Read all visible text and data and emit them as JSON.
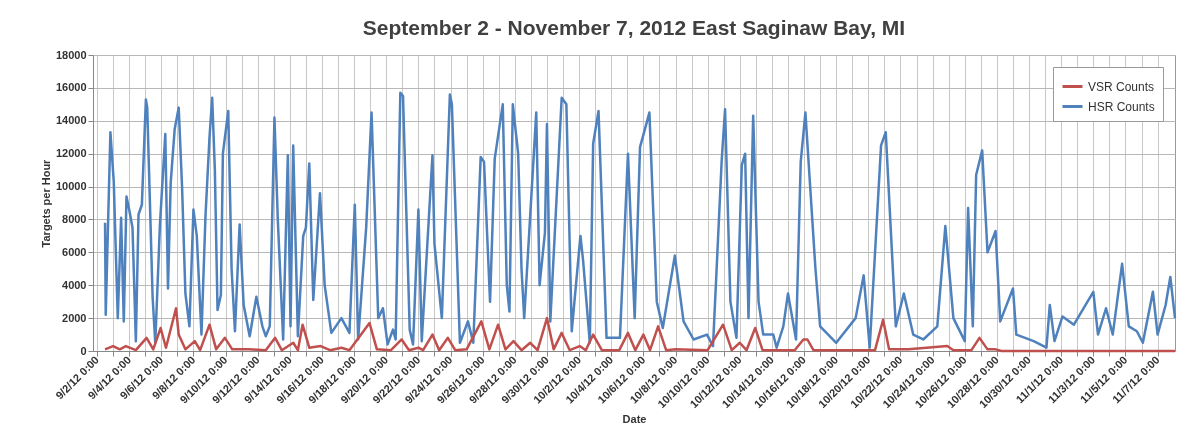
{
  "chart_data": {
    "type": "line",
    "title": "September 2 - November 7, 2012 East Saginaw Bay, MI",
    "xlabel": "Date",
    "ylabel": "Targets per Hour",
    "xlim": [
      "2012-09-01T18:00",
      "2012-11-08T02:00"
    ],
    "ylim": [
      0,
      18000
    ],
    "yticks": [
      0,
      2000,
      4000,
      6000,
      8000,
      10000,
      12000,
      14000,
      16000,
      18000
    ],
    "xticks": [
      {
        "value": "2012-09-02",
        "label": "9/2/12 0:00"
      },
      {
        "value": "2012-09-03",
        "label": null
      },
      {
        "value": "2012-09-04",
        "label": "9/4/12 0:00"
      },
      {
        "value": "2012-09-05",
        "label": null
      },
      {
        "value": "2012-09-06",
        "label": "9/6/12 0:00"
      },
      {
        "value": "2012-09-07",
        "label": null
      },
      {
        "value": "2012-09-08",
        "label": "9/8/12 0:00"
      },
      {
        "value": "2012-09-09",
        "label": null
      },
      {
        "value": "2012-09-10",
        "label": "9/10/12 0:00"
      },
      {
        "value": "2012-09-11",
        "label": null
      },
      {
        "value": "2012-09-12",
        "label": "9/12/12 0:00"
      },
      {
        "value": "2012-09-13",
        "label": null
      },
      {
        "value": "2012-09-14",
        "label": "9/14/12 0:00"
      },
      {
        "value": "2012-09-15",
        "label": null
      },
      {
        "value": "2012-09-16",
        "label": "9/16/12 0:00"
      },
      {
        "value": "2012-09-17",
        "label": null
      },
      {
        "value": "2012-09-18",
        "label": "9/18/12 0:00"
      },
      {
        "value": "2012-09-19",
        "label": null
      },
      {
        "value": "2012-09-20",
        "label": "9/20/12 0:00"
      },
      {
        "value": "2012-09-21",
        "label": null
      },
      {
        "value": "2012-09-22",
        "label": "9/22/12 0:00"
      },
      {
        "value": "2012-09-23",
        "label": null
      },
      {
        "value": "2012-09-24",
        "label": "9/24/12 0:00"
      },
      {
        "value": "2012-09-25",
        "label": null
      },
      {
        "value": "2012-09-26",
        "label": "9/26/12 0:00"
      },
      {
        "value": "2012-09-27",
        "label": null
      },
      {
        "value": "2012-09-28",
        "label": "9/28/12 0:00"
      },
      {
        "value": "2012-09-29",
        "label": null
      },
      {
        "value": "2012-09-30",
        "label": "9/30/12 0:00"
      },
      {
        "value": "2012-10-01",
        "label": null
      },
      {
        "value": "2012-10-02",
        "label": "10/2/12 0:00"
      },
      {
        "value": "2012-10-03",
        "label": null
      },
      {
        "value": "2012-10-04",
        "label": "10/4/12 0:00"
      },
      {
        "value": "2012-10-05",
        "label": null
      },
      {
        "value": "2012-10-06",
        "label": "10/6/12 0:00"
      },
      {
        "value": "2012-10-07",
        "label": null
      },
      {
        "value": "2012-10-08",
        "label": "10/8/12 0:00"
      },
      {
        "value": "2012-10-09",
        "label": null
      },
      {
        "value": "2012-10-10",
        "label": "10/10/12 0:00"
      },
      {
        "value": "2012-10-11",
        "label": null
      },
      {
        "value": "2012-10-12",
        "label": "10/12/12 0:00"
      },
      {
        "value": "2012-10-13",
        "label": null
      },
      {
        "value": "2012-10-14",
        "label": "10/14/12 0:00"
      },
      {
        "value": "2012-10-15",
        "label": null
      },
      {
        "value": "2012-10-16",
        "label": "10/16/12 0:00"
      },
      {
        "value": "2012-10-17",
        "label": null
      },
      {
        "value": "2012-10-18",
        "label": "10/18/12 0:00"
      },
      {
        "value": "2012-10-19",
        "label": null
      },
      {
        "value": "2012-10-20",
        "label": "10/20/12 0:00"
      },
      {
        "value": "2012-10-21",
        "label": null
      },
      {
        "value": "2012-10-22",
        "label": "10/22/12 0:00"
      },
      {
        "value": "2012-10-23",
        "label": null
      },
      {
        "value": "2012-10-24",
        "label": "10/24/12 0:00"
      },
      {
        "value": "2012-10-25",
        "label": null
      },
      {
        "value": "2012-10-26",
        "label": "10/26/12 0:00"
      },
      {
        "value": "2012-10-27",
        "label": null
      },
      {
        "value": "2012-10-28",
        "label": "10/28/12 0:00"
      },
      {
        "value": "2012-10-29",
        "label": null
      },
      {
        "value": "2012-10-30",
        "label": "10/30/12 0:00"
      },
      {
        "value": "2012-10-31",
        "label": null
      },
      {
        "value": "2012-11-01",
        "label": "11/1/12 0:00"
      },
      {
        "value": "2012-11-02",
        "label": null
      },
      {
        "value": "2012-11-03",
        "label": "11/3/12 0:00"
      },
      {
        "value": "2012-11-04",
        "label": null
      },
      {
        "value": "2012-11-05",
        "label": "11/5/12 0:00"
      },
      {
        "value": "2012-11-06",
        "label": null
      },
      {
        "value": "2012-11-07",
        "label": "11/7/12 0:00"
      }
    ],
    "grid": true,
    "legend": "top right",
    "series": [
      {
        "name": "VSR Counts",
        "color": "#c0504d",
        "x": [
          "2012-09-02T12:00",
          "2012-09-03T00:00",
          "2012-09-03T10:00",
          "2012-09-03T19:00",
          "2012-09-04T10:00",
          "2012-09-05T02:00",
          "2012-09-05T12:00",
          "2012-09-05T23:00",
          "2012-09-06T07:00",
          "2012-09-06T22:00",
          "2012-09-07T02:00",
          "2012-09-07T12:00",
          "2012-09-08T02:00",
          "2012-09-08T10:00",
          "2012-09-09T00:00",
          "2012-09-09T10:00",
          "2012-09-09T23:00",
          "2012-09-10T10:00",
          "2012-09-11T12:00",
          "2012-09-12T12:00",
          "2012-09-13T02:00",
          "2012-09-13T12:00",
          "2012-09-14T05:00",
          "2012-09-14T12:00",
          "2012-09-14T19:00",
          "2012-09-15T05:00",
          "2012-09-15T22:00",
          "2012-09-16T12:00",
          "2012-09-17T05:00",
          "2012-09-17T17:00",
          "2012-09-18T23:00",
          "2012-09-19T10:00",
          "2012-09-20T07:00",
          "2012-09-20T23:00",
          "2012-09-21T10:00",
          "2012-09-22T00:00",
          "2012-09-22T07:00",
          "2012-09-22T21:00",
          "2012-09-23T07:00",
          "2012-09-23T20:00",
          "2012-09-24T07:00",
          "2012-09-25T00:00",
          "2012-09-25T22:00",
          "2012-09-26T10:00",
          "2012-09-26T23:00",
          "2012-09-27T10:00",
          "2012-09-27T22:00",
          "2012-09-28T10:00",
          "2012-09-28T23:00",
          "2012-09-29T10:00",
          "2012-09-30T00:00",
          "2012-09-30T10:00",
          "2012-09-30T22:00",
          "2012-10-01T10:00",
          "2012-10-02T01:00",
          "2012-10-02T10:00",
          "2012-10-02T21:00",
          "2012-10-03T10:00",
          "2012-10-04T12:00",
          "2012-10-05T01:00",
          "2012-10-05T12:00",
          "2012-10-06T00:00",
          "2012-10-06T10:00",
          "2012-10-06T22:00",
          "2012-10-07T10:00",
          "2012-10-08T00:00",
          "2012-10-10T00:00",
          "2012-10-10T23:00",
          "2012-10-11T12:00",
          "2012-10-12T00:00",
          "2012-10-12T10:00",
          "2012-10-12T23:00",
          "2012-10-13T10:00",
          "2012-10-15T10:00",
          "2012-10-15T23:00",
          "2012-10-16T05:00",
          "2012-10-16T14:00",
          "2012-10-20T10:00",
          "2012-10-20T22:00",
          "2012-10-21T07:00",
          "2012-10-22T12:00",
          "2012-10-24T22:00",
          "2012-10-25T07:00",
          "2012-10-26T10:00",
          "2012-10-26T22:00",
          "2012-10-27T10:00",
          "2012-10-27T22:00",
          "2012-10-28T07:00",
          "2012-11-08T02:00"
        ],
        "values": [
          100,
          300,
          100,
          300,
          50,
          800,
          100,
          1400,
          200,
          2600,
          1000,
          100,
          600,
          50,
          1600,
          100,
          800,
          100,
          100,
          50,
          800,
          50,
          500,
          50,
          1600,
          200,
          300,
          50,
          200,
          50,
          1700,
          100,
          50,
          700,
          50,
          200,
          50,
          1000,
          50,
          800,
          50,
          100,
          1800,
          100,
          1600,
          100,
          600,
          50,
          500,
          50,
          2000,
          100,
          1100,
          50,
          300,
          50,
          1000,
          50,
          50,
          1100,
          50,
          1000,
          50,
          1500,
          50,
          100,
          50,
          1600,
          50,
          500,
          50,
          1400,
          50,
          50,
          700,
          700,
          50,
          50,
          1900,
          100,
          100,
          300,
          50,
          50,
          800,
          100,
          100,
          0,
          0
        ]
      },
      {
        "name": "HSR Counts",
        "color": "#4f81bd",
        "x": [
          "2012-09-02T12:00",
          "2012-09-02T13:00",
          "2012-09-02T20:00",
          "2012-09-03T01:00",
          "2012-09-03T07:00",
          "2012-09-03T12:00",
          "2012-09-03T16:00",
          "2012-09-03T20:00",
          "2012-09-04T00:00",
          "2012-09-04T05:00",
          "2012-09-04T10:00",
          "2012-09-04T14:00",
          "2012-09-04T19:00",
          "2012-09-05T01:00",
          "2012-09-05T03:00",
          "2012-09-05T11:00",
          "2012-09-05T15:00",
          "2012-09-05T22:00",
          "2012-09-06T06:00",
          "2012-09-06T10:00",
          "2012-09-06T14:00",
          "2012-09-06T20:00",
          "2012-09-07T02:00",
          "2012-09-07T07:00",
          "2012-09-07T12:00",
          "2012-09-07T18:00",
          "2012-09-07T21:00",
          "2012-09-08T00:00",
          "2012-09-08T05:00",
          "2012-09-08T12:00",
          "2012-09-08T18:00",
          "2012-09-09T00:00",
          "2012-09-09T04:00",
          "2012-09-09T08:00",
          "2012-09-09T12:00",
          "2012-09-09T17:00",
          "2012-09-09T20:00",
          "2012-09-10T04:00",
          "2012-09-10T09:00",
          "2012-09-10T14:00",
          "2012-09-10T21:00",
          "2012-09-11T03:00",
          "2012-09-11T12:00",
          "2012-09-11T22:00",
          "2012-09-12T07:00",
          "2012-09-12T12:00",
          "2012-09-12T18:00",
          "2012-09-13T01:00",
          "2012-09-13T06:00",
          "2012-09-13T14:00",
          "2012-09-13T21:00",
          "2012-09-14T01:00",
          "2012-09-14T05:00",
          "2012-09-14T12:00",
          "2012-09-14T20:00",
          "2012-09-15T00:00",
          "2012-09-15T05:00",
          "2012-09-15T11:00",
          "2012-09-15T21:00",
          "2012-09-16T04:00",
          "2012-09-16T14:00",
          "2012-09-17T05:00",
          "2012-09-17T17:00",
          "2012-09-18T01:00",
          "2012-09-18T06:00",
          "2012-09-18T18:00",
          "2012-09-19T02:00",
          "2012-09-19T12:00",
          "2012-09-19T19:00",
          "2012-09-20T02:00",
          "2012-09-20T10:00",
          "2012-09-20T14:00",
          "2012-09-20T21:00",
          "2012-09-21T01:00",
          "2012-09-21T11:00",
          "2012-09-21T16:00",
          "2012-09-22T00:00",
          "2012-09-22T05:00",
          "2012-09-22T21:00",
          "2012-09-23T00:00",
          "2012-09-23T11:00",
          "2012-09-23T23:00",
          "2012-09-24T02:00",
          "2012-09-24T14:00",
          "2012-09-25T02:00",
          "2012-09-25T10:00",
          "2012-09-25T21:00",
          "2012-09-26T02:00",
          "2012-09-26T11:00",
          "2012-09-26T18:00",
          "2012-09-27T06:00",
          "2012-09-27T12:00",
          "2012-09-27T16:00",
          "2012-09-27T21:00",
          "2012-09-28T05:00",
          "2012-09-28T10:00",
          "2012-09-28T14:00",
          "2012-09-29T08:00",
          "2012-09-29T13:00",
          "2012-09-29T21:00",
          "2012-09-30T00:00",
          "2012-09-30T05:00",
          "2012-09-30T22:00",
          "2012-10-01T05:00",
          "2012-10-01T13:00",
          "2012-10-02T02:00",
          "2012-10-02T06:00",
          "2012-10-02T16:00",
          "2012-10-02T21:00",
          "2012-10-03T05:00",
          "2012-10-03T17:00",
          "2012-10-04T13:00",
          "2012-10-05T01:00",
          "2012-10-05T11:00",
          "2012-10-05T19:00",
          "2012-10-06T09:00",
          "2012-10-06T20:00",
          "2012-10-07T05:00",
          "2012-10-07T23:00",
          "2012-10-08T12:00",
          "2012-10-09T03:00",
          "2012-10-09T23:00",
          "2012-10-10T08:00",
          "2012-10-10T21:00",
          "2012-10-11T02:00",
          "2012-10-11T10:00",
          "2012-10-11T19:00",
          "2012-10-12T03:00",
          "2012-10-12T08:00",
          "2012-10-12T13:00",
          "2012-10-12T20:00",
          "2012-10-13T04:00",
          "2012-10-13T11:00",
          "2012-10-14T02:00",
          "2012-10-14T07:00",
          "2012-10-14T17:00",
          "2012-10-15T00:00",
          "2012-10-15T12:00",
          "2012-10-15T19:00",
          "2012-10-16T02:00",
          "2012-10-16T17:00",
          "2012-10-17T00:00",
          "2012-10-18T00:00",
          "2012-10-19T05:00",
          "2012-10-19T17:00",
          "2012-10-20T02:00",
          "2012-10-20T19:00",
          "2012-10-21T02:00",
          "2012-10-21T17:00",
          "2012-10-22T05:00",
          "2012-10-22T19:00",
          "2012-10-23T10:00",
          "2012-10-24T07:00",
          "2012-10-24T19:00",
          "2012-10-25T07:00",
          "2012-10-26T00:00",
          "2012-10-26T05:00",
          "2012-10-26T12:00",
          "2012-10-26T17:00",
          "2012-10-27T02:00",
          "2012-10-27T10:00",
          "2012-10-27T22:00",
          "2012-10-28T05:00",
          "2012-10-29T00:00",
          "2012-10-29T05:00",
          "2012-10-30T07:00",
          "2012-10-31T02:00",
          "2012-10-31T07:00",
          "2012-10-31T14:00",
          "2012-11-01T02:00",
          "2012-11-01T19:00",
          "2012-11-03T00:00",
          "2012-11-03T07:00",
          "2012-11-03T19:00",
          "2012-11-04T05:00",
          "2012-11-04T19:00",
          "2012-11-05T05:00",
          "2012-11-05T17:00",
          "2012-11-06T02:00",
          "2012-11-06T17:00",
          "2012-11-07T00:00",
          "2012-11-07T12:00",
          "2012-11-07T19:00",
          "2012-11-08T02:00"
        ],
        "values": [
          7800,
          2200,
          13300,
          10300,
          2000,
          8100,
          1800,
          9400,
          8600,
          7500,
          600,
          8300,
          8900,
          15300,
          14800,
          3300,
          500,
          7700,
          13200,
          3800,
          10200,
          13500,
          14800,
          10000,
          3500,
          1500,
          5000,
          8600,
          7000,
          1000,
          8200,
          13000,
          15400,
          11000,
          2500,
          3400,
          12000,
          14600,
          5000,
          1200,
          7700,
          2800,
          900,
          3300,
          1500,
          900,
          1500,
          14200,
          8000,
          700,
          11900,
          1500,
          12500,
          900,
          7000,
          7500,
          11400,
          3100,
          9600,
          4000,
          1100,
          2000,
          1100,
          8900,
          700,
          7500,
          14500,
          2000,
          2600,
          400,
          1300,
          700,
          15700,
          15500,
          1300,
          400,
          8600,
          600,
          11900,
          6500,
          2000,
          15600,
          15000,
          500,
          1800,
          500,
          11800,
          11500,
          3000,
          11700,
          15000,
          4000,
          2400,
          15000,
          12000,
          5000,
          2000,
          14500,
          4000,
          7200,
          13800,
          1800,
          15400,
          15000,
          1200,
          7000,
          5500,
          500,
          12600,
          14600,
          800,
          800,
          12000,
          2000,
          12400,
          14500,
          3000,
          1400,
          5800,
          1800,
          700,
          1000,
          300,
          11600,
          14700,
          3000,
          800,
          11300,
          12000,
          2000,
          14300,
          3000,
          1000,
          1000,
          200,
          1500,
          3500,
          700,
          11500,
          14500,
          5000,
          1500,
          500,
          2000,
          4600,
          200,
          12500,
          13300,
          1500,
          3500,
          1000,
          700,
          1500,
          7600,
          2000,
          600,
          8700,
          1500,
          10700,
          12200,
          6000,
          7300,
          1800,
          3800,
          1000,
          600,
          200,
          2800,
          600,
          2100,
          1600,
          3600,
          1000,
          2600,
          1000,
          5300,
          1500,
          1200,
          500,
          3600,
          1000,
          2800,
          4500,
          2000
        ]
      }
    ]
  }
}
